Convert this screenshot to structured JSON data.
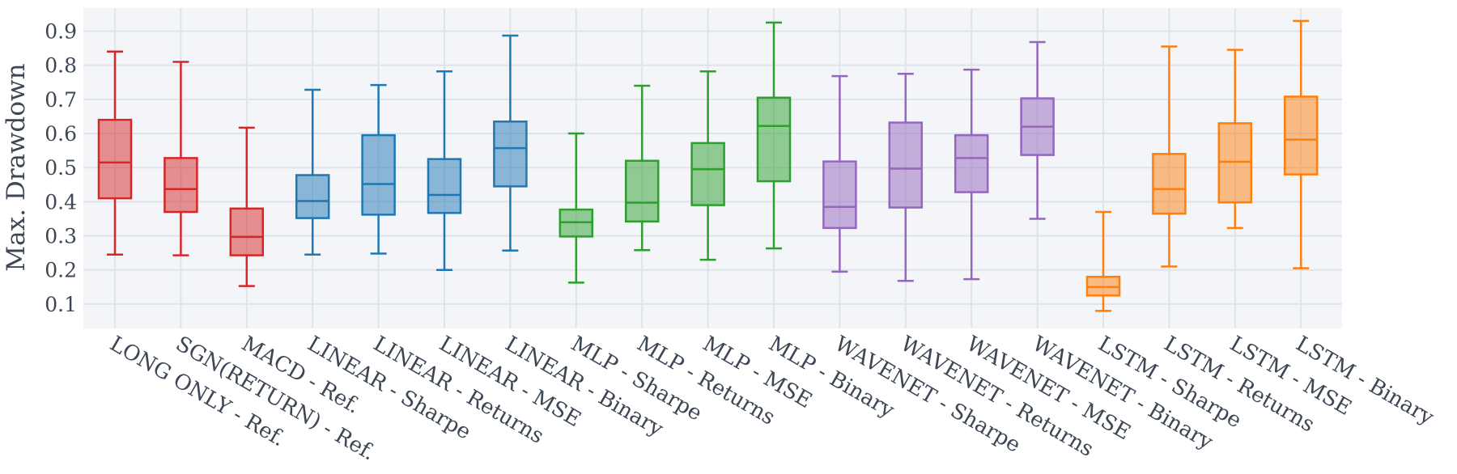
{
  "chart_data": {
    "type": "box",
    "title": "",
    "xlabel": "",
    "ylabel": "Max. Drawdown",
    "ylim": [
      0.03,
      0.96
    ],
    "yticks": [
      0.1,
      0.2,
      0.3,
      0.4,
      0.5,
      0.6,
      0.7,
      0.8,
      0.9
    ],
    "ytick_labels": [
      "0.1",
      "0.2",
      "0.3",
      "0.4",
      "0.5",
      "0.6",
      "0.7",
      "0.8",
      "0.9"
    ],
    "grid": true,
    "legend": "none",
    "colors": {
      "reference": "#d62728",
      "linear": "#1f77b4",
      "mlp": "#2ca02c",
      "wavenet": "#9467bd",
      "lstm": "#ff7f0e",
      "plot_bg": "#f3f5f9",
      "grid": "#dfe3ea",
      "text": "#3d4654"
    },
    "boxes": [
      {
        "label": "LONG ONLY - Ref.",
        "group": "reference",
        "min": 0.245,
        "q1": 0.41,
        "median": 0.515,
        "q3": 0.64,
        "max": 0.84
      },
      {
        "label": "SGN(RETURN) - Ref.",
        "group": "reference",
        "min": 0.243,
        "q1": 0.37,
        "median": 0.437,
        "q3": 0.528,
        "max": 0.81
      },
      {
        "label": "MACD - Ref.",
        "group": "reference",
        "min": 0.153,
        "q1": 0.243,
        "median": 0.297,
        "q3": 0.38,
        "max": 0.617
      },
      {
        "label": "LINEAR - Sharpe",
        "group": "linear",
        "min": 0.245,
        "q1": 0.352,
        "median": 0.402,
        "q3": 0.478,
        "max": 0.728
      },
      {
        "label": "LINEAR - Returns",
        "group": "linear",
        "min": 0.248,
        "q1": 0.362,
        "median": 0.452,
        "q3": 0.595,
        "max": 0.742
      },
      {
        "label": "LINEAR - MSE",
        "group": "linear",
        "min": 0.2,
        "q1": 0.367,
        "median": 0.42,
        "q3": 0.525,
        "max": 0.782
      },
      {
        "label": "LINEAR - Binary",
        "group": "linear",
        "min": 0.257,
        "q1": 0.445,
        "median": 0.557,
        "q3": 0.635,
        "max": 0.887
      },
      {
        "label": "MLP - Sharpe",
        "group": "mlp",
        "min": 0.163,
        "q1": 0.298,
        "median": 0.34,
        "q3": 0.377,
        "max": 0.6
      },
      {
        "label": "MLP - Returns",
        "group": "mlp",
        "min": 0.258,
        "q1": 0.342,
        "median": 0.397,
        "q3": 0.52,
        "max": 0.74
      },
      {
        "label": "MLP - MSE",
        "group": "mlp",
        "min": 0.23,
        "q1": 0.39,
        "median": 0.495,
        "q3": 0.572,
        "max": 0.782
      },
      {
        "label": "MLP - Binary",
        "group": "mlp",
        "min": 0.263,
        "q1": 0.46,
        "median": 0.622,
        "q3": 0.705,
        "max": 0.925
      },
      {
        "label": "WAVENET - Sharpe",
        "group": "wavenet",
        "min": 0.195,
        "q1": 0.323,
        "median": 0.385,
        "q3": 0.518,
        "max": 0.768
      },
      {
        "label": "WAVENET - Returns",
        "group": "wavenet",
        "min": 0.168,
        "q1": 0.383,
        "median": 0.497,
        "q3": 0.632,
        "max": 0.775
      },
      {
        "label": "WAVENET - MSE",
        "group": "wavenet",
        "min": 0.173,
        "q1": 0.428,
        "median": 0.528,
        "q3": 0.595,
        "max": 0.787
      },
      {
        "label": "WAVENET - Binary",
        "group": "wavenet",
        "min": 0.35,
        "q1": 0.537,
        "median": 0.62,
        "q3": 0.703,
        "max": 0.868
      },
      {
        "label": "LSTM - Sharpe",
        "group": "lstm",
        "min": 0.08,
        "q1": 0.125,
        "median": 0.15,
        "q3": 0.18,
        "max": 0.37
      },
      {
        "label": "LSTM - Returns",
        "group": "lstm",
        "min": 0.21,
        "q1": 0.365,
        "median": 0.437,
        "q3": 0.54,
        "max": 0.855
      },
      {
        "label": "LSTM - MSE",
        "group": "lstm",
        "min": 0.323,
        "q1": 0.398,
        "median": 0.517,
        "q3": 0.63,
        "max": 0.845
      },
      {
        "label": "LSTM - Binary",
        "group": "lstm",
        "min": 0.205,
        "q1": 0.48,
        "median": 0.582,
        "q3": 0.708,
        "max": 0.93
      }
    ]
  }
}
